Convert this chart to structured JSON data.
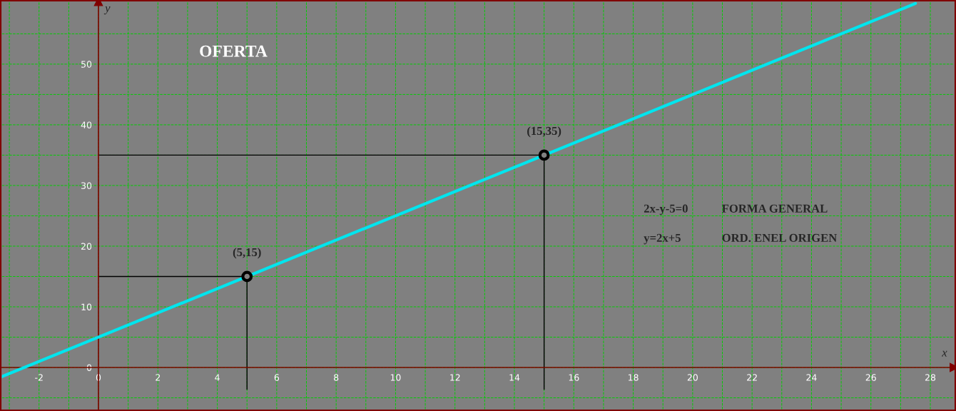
{
  "chart_data": {
    "type": "line",
    "title": "OFERTA",
    "xlabel": "x",
    "ylabel": "y",
    "series": [
      {
        "color": "#00e5ee",
        "x": [
          -3.25,
          27.5
        ],
        "values": [
          -1.5,
          60
        ]
      },
      {
        "type": "line",
        "color": "#000000",
        "x": [
          0,
          5,
          5
        ],
        "values": [
          15,
          15,
          -3.6
        ]
      },
      {
        "type": "line",
        "color": "#000000",
        "x": [
          0,
          15,
          15
        ],
        "values": [
          35,
          35,
          -3.6
        ]
      },
      {
        "type": "scatter",
        "color": "#000000",
        "marker": "circle",
        "x": [
          5,
          15
        ],
        "values": [
          15,
          35
        ]
      }
    ],
    "annotations": [
      {
        "text": "(5,15)",
        "x": 5,
        "y": 15
      },
      {
        "text": "(15,35)",
        "x": 15,
        "y": 35
      },
      "2x-y-5=0",
      "FORMA GENERAL",
      "y=2x+5",
      "ORD. ENEL ORIGEN"
    ],
    "xlim": [
      -3.25,
      28.8
    ],
    "ylim": [
      -6.9,
      60.3
    ],
    "xticks": [
      {
        "value": -3,
        "label": null
      },
      -2,
      {
        "value": -1,
        "label": null
      },
      0,
      {
        "value": 1,
        "label": null
      },
      2,
      {
        "value": 3,
        "label": null
      },
      4,
      {
        "value": 5,
        "label": null
      },
      6,
      {
        "value": 7,
        "label": null
      },
      8,
      {
        "value": 9,
        "label": null
      },
      10,
      {
        "value": 11,
        "label": null
      },
      12,
      {
        "value": 13,
        "label": null
      },
      14,
      {
        "value": 15,
        "label": null
      },
      16,
      {
        "value": 17,
        "label": null
      },
      18,
      {
        "value": 19,
        "label": null
      },
      20,
      {
        "value": 21,
        "label": null
      },
      22,
      {
        "value": 23,
        "label": null
      },
      24,
      {
        "value": 25,
        "label": null
      },
      26,
      {
        "value": 27,
        "label": null
      },
      28
    ],
    "yticks": [
      {
        "value": -5,
        "label": null
      },
      0,
      {
        "value": 5,
        "label": null
      },
      10,
      {
        "value": 15,
        "label": null
      },
      20,
      {
        "value": 25,
        "label": null
      },
      30,
      {
        "value": 35,
        "label": null
      },
      40,
      {
        "value": 45,
        "label": null
      },
      50,
      {
        "value": 55,
        "label": null
      }
    ],
    "grid": true,
    "line_style": "solid"
  }
}
